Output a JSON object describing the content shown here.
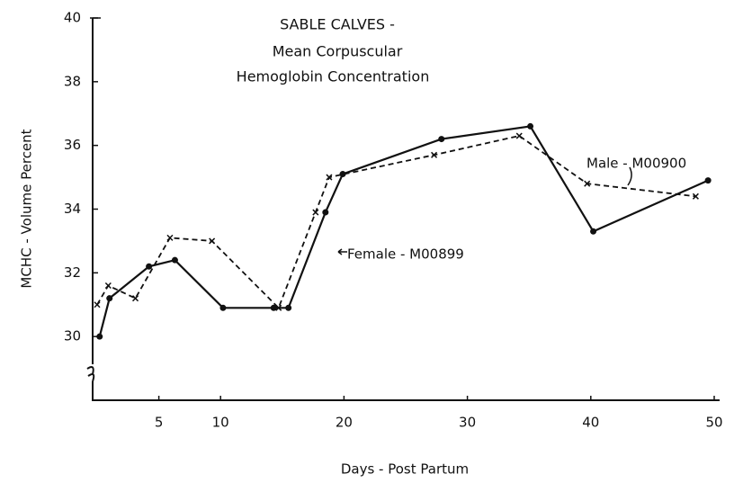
{
  "chart_data": {
    "type": "line",
    "title": [
      "SABLE CALVES -",
      "Mean Corpuscular",
      "Hemoglobin Concentration"
    ],
    "x_label": "Days - Post Partum",
    "y_label": "MCHC - Volume Percent",
    "xlim": [
      0,
      50
    ],
    "xticks": [
      5,
      10,
      20,
      30,
      40,
      50
    ],
    "ylim": [
      28,
      40
    ],
    "yticks": [
      30,
      32,
      34,
      36,
      38,
      40
    ],
    "series": [
      {
        "name": "Female - M00899",
        "color": "#111111",
        "style": "solid",
        "marker": "dot",
        "x": [
          0.2,
          1,
          4.2,
          6.3,
          10.2,
          14.3,
          15.5,
          18.5,
          19.9,
          27.9,
          35.1,
          40.2,
          49.5
        ],
        "values": [
          30.0,
          31.2,
          32.2,
          32.4,
          30.9,
          30.9,
          30.9,
          33.9,
          35.1,
          36.2,
          36.6,
          33.3,
          34.9
        ]
      },
      {
        "name": "Male - M00900",
        "color": "#111111",
        "style": "dashed",
        "marker": "x",
        "x": [
          0,
          0.9,
          3.1,
          5.9,
          9.3,
          14.7,
          17.7,
          18.8,
          27.3,
          34.2,
          39.7,
          48.5
        ],
        "values": [
          31.0,
          31.6,
          31.2,
          33.1,
          33.0,
          30.9,
          33.9,
          35.0,
          35.7,
          36.3,
          34.8,
          34.4
        ]
      }
    ]
  }
}
